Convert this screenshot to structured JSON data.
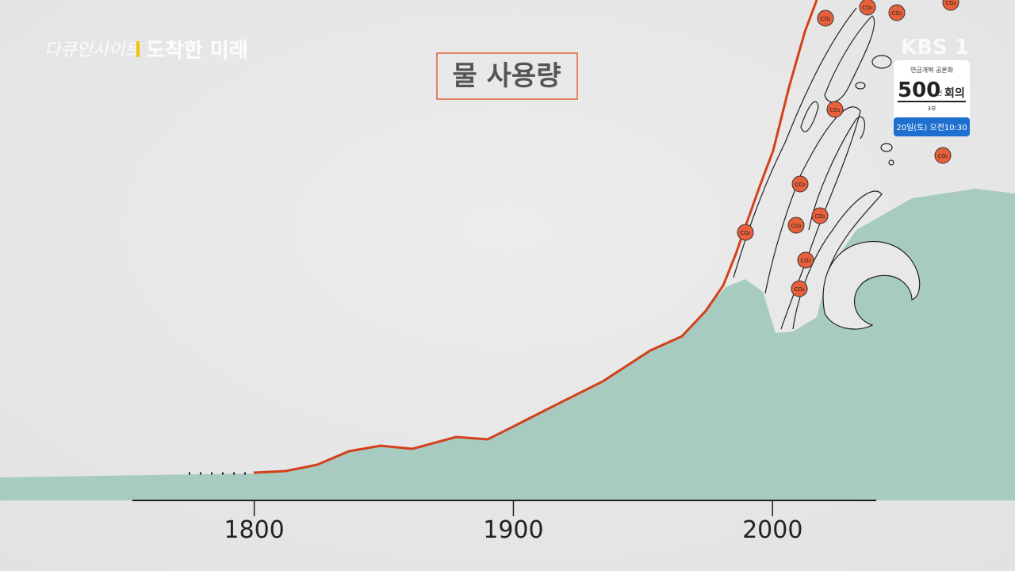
{
  "chart_data": {
    "type": "illustration",
    "title": "물 사용량",
    "xlim": [
      1753,
      2040
    ],
    "xticks": [
      1800,
      1900,
      2000
    ],
    "co2_label": "CO₂"
  },
  "overlay": {
    "program": "다큐인사이트",
    "episode": "도착한 미래",
    "channel": "KBS 1",
    "badge": {
      "top": "연금개혁 공론화",
      "number": "500",
      "unit": "인",
      "word": "회의",
      "part": "3부",
      "time": "20일(토) 오전10:30"
    }
  }
}
